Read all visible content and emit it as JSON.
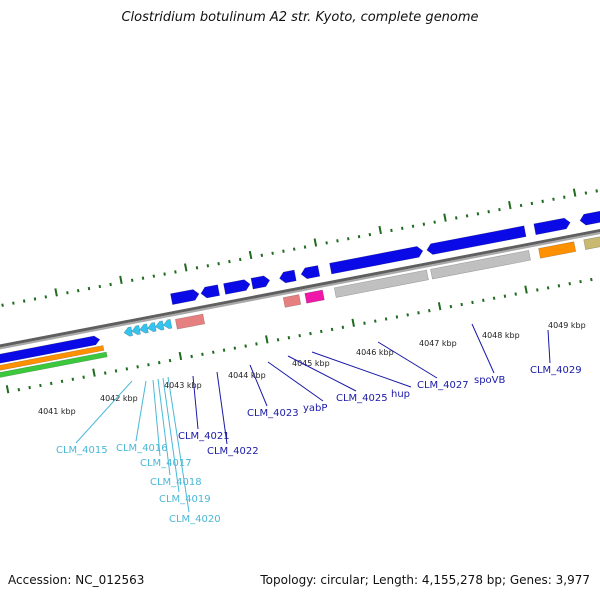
{
  "title": "Clostridium botulinum A2 str. Kyoto, complete genome",
  "footer": {
    "accession": "Accession: NC_012563",
    "summary": "Topology: circular; Length: 4,155,278 bp; Genes: 3,977"
  },
  "colors": {
    "backbone": "#808080",
    "cds_blue": "#0a0ae6",
    "cds_cyan": "#35c3f0",
    "pink": "#e68080",
    "magenta": "#f018a8",
    "gray": "#c0c0c0",
    "orange": "#ff9000",
    "olive": "#c8b870",
    "green": "#3cc83c",
    "tick": "#1f6b1f",
    "label_dark": "#1a1aa8",
    "label_light": "#4ab8d8"
  },
  "kbp_labels": [
    "4041 kbp",
    "4042 kbp",
    "4043 kbp",
    "4044 kbp",
    "4045 kbp",
    "4046 kbp",
    "4047 kbp",
    "4048 kbp",
    "4049 kbp"
  ],
  "gene_labels": [
    {
      "text": "CLM_4015",
      "tone": "light"
    },
    {
      "text": "CLM_4016",
      "tone": "light"
    },
    {
      "text": "CLM_4017",
      "tone": "light"
    },
    {
      "text": "CLM_4018",
      "tone": "light"
    },
    {
      "text": "CLM_4019",
      "tone": "light"
    },
    {
      "text": "CLM_4020",
      "tone": "light"
    },
    {
      "text": "CLM_4021",
      "tone": "dark"
    },
    {
      "text": "CLM_4022",
      "tone": "dark"
    },
    {
      "text": "CLM_4023",
      "tone": "dark"
    },
    {
      "text": "yabP",
      "tone": "dark"
    },
    {
      "text": "CLM_4025",
      "tone": "dark"
    },
    {
      "text": "hup",
      "tone": "dark"
    },
    {
      "text": "CLM_4027",
      "tone": "dark"
    },
    {
      "text": "spoVB",
      "tone": "dark"
    },
    {
      "text": "CLM_4029",
      "tone": "dark"
    }
  ]
}
